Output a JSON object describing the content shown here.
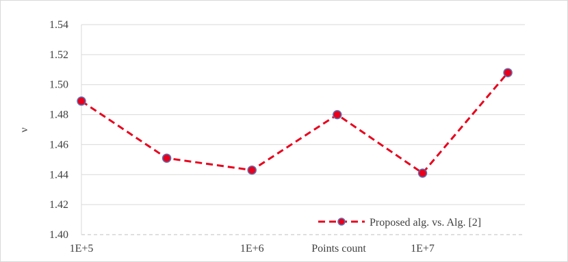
{
  "chart_data": {
    "type": "line",
    "xlabel": "Points count",
    "ylabel": "ν",
    "x_scale": "log",
    "xlim": [
      100000,
      39810717
    ],
    "ylim": [
      1.4,
      1.54
    ],
    "y_ticks": [
      "1.40",
      "1.42",
      "1.44",
      "1.46",
      "1.48",
      "1.50",
      "1.52",
      "1.54"
    ],
    "x_ticks": [
      {
        "value": 100000,
        "label": "1E+5"
      },
      {
        "value": 1000000,
        "label": "1E+6"
      },
      {
        "value": 10000000,
        "label": "1E+7"
      }
    ],
    "grid": true,
    "legend_position": "bottom-right",
    "series": [
      {
        "name": "Proposed alg. vs. Alg. [2]",
        "color": "#e8001c",
        "marker_fill": "#e8001c",
        "marker_edge": "#5b74b8",
        "line_style": "dashed",
        "x": [
          100000,
          316228,
          1000000,
          3162278,
          10000000,
          31622777
        ],
        "y": [
          1.489,
          1.451,
          1.443,
          1.48,
          1.441,
          1.508
        ]
      }
    ]
  }
}
